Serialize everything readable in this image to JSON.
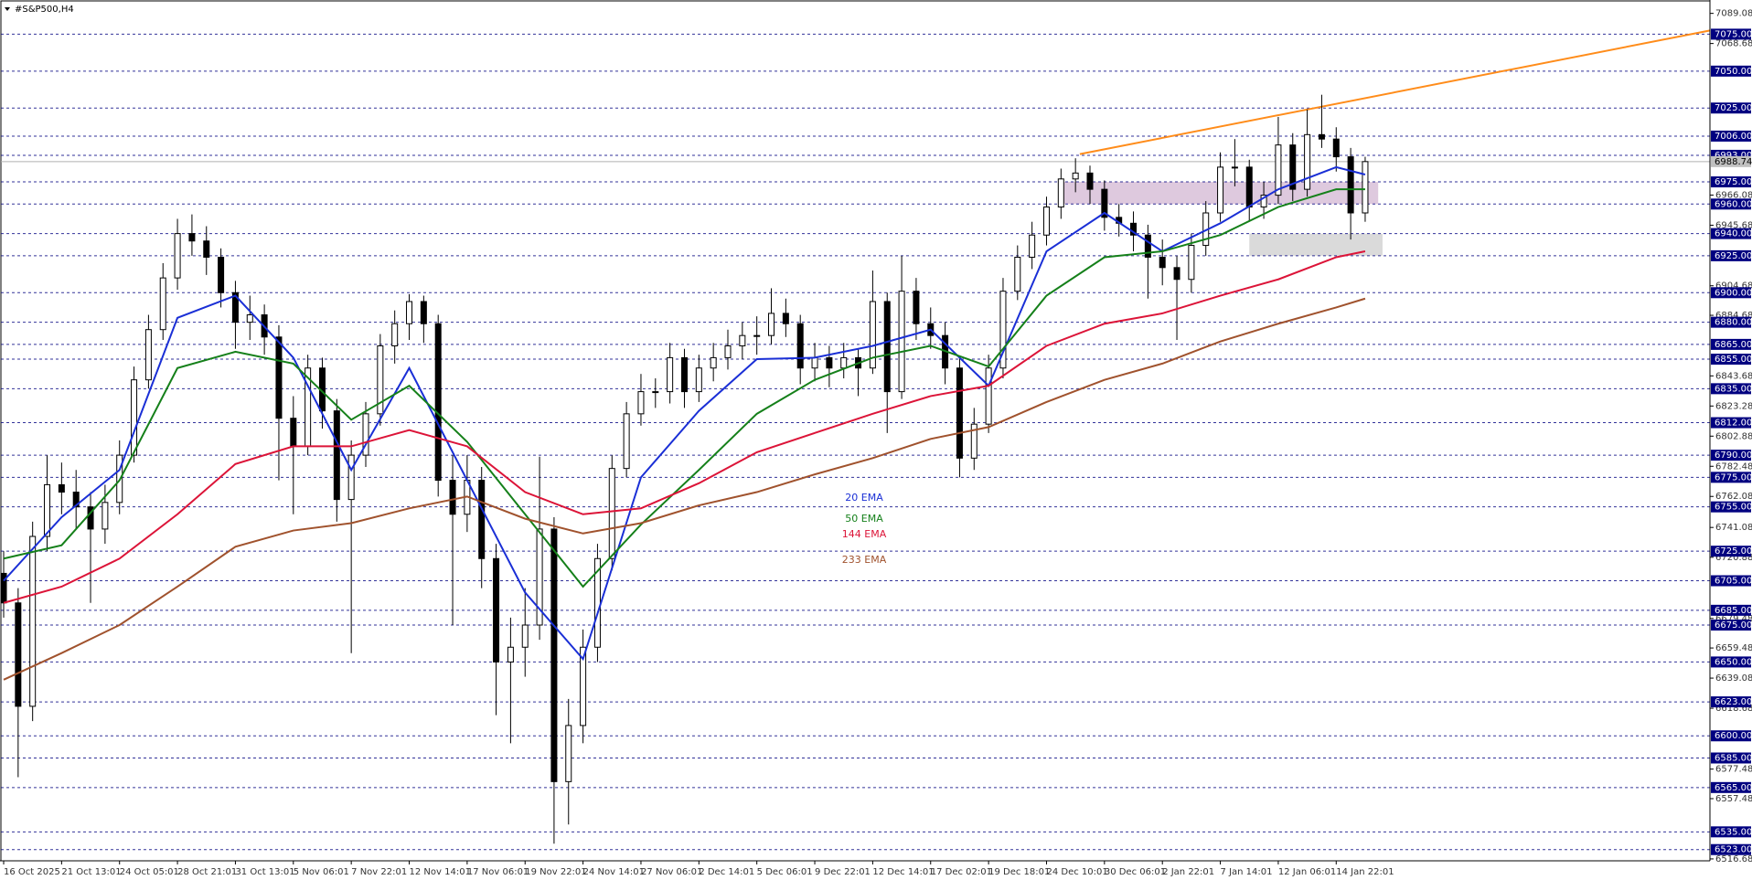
{
  "chart_data": {
    "type": "candlestick",
    "title": "#S&P500,H4",
    "ylim": [
      6515.4,
      7096.9
    ],
    "grid": false,
    "up_color": "#ffffff",
    "down_color": "#000000",
    "wick_color": "#000000",
    "level_color": "#000080",
    "yticks": [
      7089.08,
      7068.68,
      6966.08,
      6945.68,
      6904.68,
      6884.68,
      6843.68,
      6823.28,
      6802.88,
      6782.48,
      6762.08,
      6741.08,
      6720.88,
      6679.48,
      6659.48,
      6639.08,
      6618.68,
      6577.48,
      6557.48,
      6516.68
    ],
    "xticks": [
      {
        "value": 0,
        "label": "16 Oct 2025"
      },
      {
        "value": 4,
        "label": "21 Oct 13:01"
      },
      {
        "value": 8,
        "label": "24 Oct 05:01"
      },
      {
        "value": 12,
        "label": "28 Oct 21:01"
      },
      {
        "value": 16,
        "label": "31 Oct 13:01"
      },
      {
        "value": 20,
        "label": "5 Nov 06:01"
      },
      {
        "value": 24,
        "label": "7 Nov 22:01"
      },
      {
        "value": 28,
        "label": "12 Nov 14:01"
      },
      {
        "value": 32,
        "label": "17 Nov 06:01"
      },
      {
        "value": 36,
        "label": "19 Nov 22:01"
      },
      {
        "value": 40,
        "label": "24 Nov 14:01"
      },
      {
        "value": 44,
        "label": "27 Nov 06:01"
      },
      {
        "value": 48,
        "label": "2 Dec 14:01"
      },
      {
        "value": 52,
        "label": "5 Dec 06:01"
      },
      {
        "value": 56,
        "label": "9 Dec 22:01"
      },
      {
        "value": 60,
        "label": "12 Dec 14:01"
      },
      {
        "value": 64,
        "label": "17 Dec 02:01"
      },
      {
        "value": 68,
        "label": "19 Dec 18:01"
      },
      {
        "value": 72,
        "label": "24 Dec 10:01"
      },
      {
        "value": 76,
        "label": "30 Dec 06:01"
      },
      {
        "value": 80,
        "label": "2 Jan 22:01"
      },
      {
        "value": 84,
        "label": "7 Jan 14:01"
      },
      {
        "value": 88,
        "label": "12 Jan 06:01"
      },
      {
        "value": 92,
        "label": "14 Jan 22:01"
      }
    ],
    "ohlc": [
      [
        6710,
        6725,
        6680,
        6690
      ],
      [
        6690,
        6700,
        6572,
        6620
      ],
      [
        6620,
        6745,
        6610,
        6735
      ],
      [
        6735,
        6790,
        6725,
        6770
      ],
      [
        6770,
        6785,
        6750,
        6765
      ],
      [
        6765,
        6780,
        6740,
        6755
      ],
      [
        6755,
        6765,
        6690,
        6740
      ],
      [
        6740,
        6770,
        6730,
        6758
      ],
      [
        6758,
        6800,
        6750,
        6790
      ],
      [
        6790,
        6850,
        6785,
        6841
      ],
      [
        6841,
        6885,
        6835,
        6875
      ],
      [
        6875,
        6920,
        6868,
        6910
      ],
      [
        6910,
        6950,
        6902,
        6940
      ],
      [
        6940,
        6953,
        6925,
        6935
      ],
      [
        6935,
        6945,
        6912,
        6924
      ],
      [
        6924,
        6930,
        6890,
        6900
      ],
      [
        6900,
        6908,
        6862,
        6880
      ],
      [
        6880,
        6898,
        6868,
        6885
      ],
      [
        6885,
        6892,
        6858,
        6870
      ],
      [
        6870,
        6878,
        6773,
        6815
      ],
      [
        6815,
        6830,
        6750,
        6796
      ],
      [
        6796,
        6858,
        6790,
        6849
      ],
      [
        6849,
        6856,
        6808,
        6820
      ],
      [
        6820,
        6828,
        6745,
        6760
      ],
      [
        6760,
        6800,
        6656,
        6790
      ],
      [
        6790,
        6826,
        6782,
        6818
      ],
      [
        6818,
        6872,
        6810,
        6864
      ],
      [
        6864,
        6888,
        6852,
        6879
      ],
      [
        6879,
        6899,
        6868,
        6894
      ],
      [
        6894,
        6898,
        6866,
        6879
      ],
      [
        6879,
        6885,
        6762,
        6773
      ],
      [
        6773,
        6790,
        6675,
        6750
      ],
      [
        6750,
        6790,
        6738,
        6773
      ],
      [
        6773,
        6782,
        6700,
        6720
      ],
      [
        6720,
        6730,
        6614,
        6650
      ],
      [
        6650,
        6680,
        6595,
        6660
      ],
      [
        6660,
        6700,
        6640,
        6675
      ],
      [
        6675,
        6789,
        6665,
        6740
      ],
      [
        6740,
        6748,
        6527,
        6569
      ],
      [
        6569,
        6625,
        6540,
        6607
      ],
      [
        6607,
        6672,
        6595,
        6660
      ],
      [
        6660,
        6730,
        6650,
        6720
      ],
      [
        6720,
        6790,
        6712,
        6781
      ],
      [
        6781,
        6826,
        6775,
        6818
      ],
      [
        6818,
        6845,
        6810,
        6833
      ],
      [
        6833,
        6842,
        6822,
        6833
      ],
      [
        6833,
        6866,
        6825,
        6856
      ],
      [
        6856,
        6862,
        6822,
        6833
      ],
      [
        6833,
        6858,
        6826,
        6849
      ],
      [
        6849,
        6866,
        6840,
        6856
      ],
      [
        6856,
        6875,
        6848,
        6864
      ],
      [
        6864,
        6880,
        6855,
        6871
      ],
      [
        6871,
        6884,
        6858,
        6871
      ],
      [
        6871,
        6903,
        6865,
        6886
      ],
      [
        6886,
        6896,
        6870,
        6879
      ],
      [
        6879,
        6885,
        6838,
        6849
      ],
      [
        6849,
        6866,
        6840,
        6856
      ],
      [
        6856,
        6864,
        6836,
        6849
      ],
      [
        6849,
        6866,
        6842,
        6856
      ],
      [
        6856,
        6862,
        6830,
        6849
      ],
      [
        6849,
        6915,
        6845,
        6894
      ],
      [
        6894,
        6900,
        6805,
        6833
      ],
      [
        6833,
        6925,
        6828,
        6901
      ],
      [
        6901,
        6910,
        6868,
        6879
      ],
      [
        6879,
        6890,
        6862,
        6871
      ],
      [
        6871,
        6880,
        6838,
        6849
      ],
      [
        6849,
        6856,
        6775,
        6788
      ],
      [
        6788,
        6822,
        6780,
        6811
      ],
      [
        6811,
        6858,
        6805,
        6849
      ],
      [
        6849,
        6910,
        6842,
        6901
      ],
      [
        6901,
        6932,
        6895,
        6924
      ],
      [
        6924,
        6948,
        6916,
        6939
      ],
      [
        6939,
        6965,
        6932,
        6958
      ],
      [
        6958,
        6984,
        6950,
        6977
      ],
      [
        6977,
        6991,
        6968,
        6981
      ],
      [
        6981,
        6986,
        6960,
        6970
      ],
      [
        6970,
        6976,
        6942,
        6951
      ],
      [
        6951,
        6960,
        6938,
        6947
      ],
      [
        6947,
        6955,
        6928,
        6939
      ],
      [
        6939,
        6946,
        6896,
        6924
      ],
      [
        6924,
        6936,
        6905,
        6917
      ],
      [
        6917,
        6925,
        6868,
        6909
      ],
      [
        6909,
        6940,
        6900,
        6932
      ],
      [
        6932,
        6962,
        6925,
        6954
      ],
      [
        6954,
        6995,
        6948,
        6985
      ],
      [
        6985,
        7004,
        6972,
        6985
      ],
      [
        6985,
        6990,
        6948,
        6958
      ],
      [
        6958,
        6975,
        6950,
        6966
      ],
      [
        6966,
        7019,
        6960,
        7000
      ],
      [
        7000,
        7008,
        6962,
        6970
      ],
      [
        6970,
        7024,
        6965,
        7007
      ],
      [
        7007,
        7034,
        6998,
        7004
      ],
      [
        7004,
        7012,
        6982,
        6992
      ],
      [
        6992,
        6998,
        6936,
        6954
      ],
      [
        6954,
        6992,
        6948,
        6988.74
      ]
    ],
    "series_x": [
      0,
      4,
      8,
      12,
      16,
      20,
      24,
      28,
      32,
      36,
      40,
      44,
      48,
      52,
      56,
      60,
      64,
      68,
      72,
      76,
      80,
      84,
      88,
      92,
      94
    ],
    "series": [
      {
        "name": "20 EMA",
        "color": "#1a2fd6",
        "values": [
          6705,
          6748,
          6780,
          6883,
          6898,
          6856,
          6780,
          6849,
          6773,
          6697,
          6652,
          6775,
          6820,
          6855,
          6856,
          6864,
          6875,
          6837,
          6928,
          6954,
          6928,
          6947,
          6970,
          6985,
          6980
        ]
      },
      {
        "name": "50 EMA",
        "color": "#15801a",
        "values": [
          6720,
          6729,
          6773,
          6849,
          6860,
          6852,
          6814,
          6837,
          6799,
          6750,
          6701,
          6743,
          6780,
          6818,
          6841,
          6856,
          6864,
          6850,
          6898,
          6924,
          6928,
          6939,
          6958,
          6970,
          6970
        ]
      },
      {
        "name": "144 EMA",
        "color": "#dc1438",
        "values": [
          6690,
          6701,
          6720,
          6750,
          6784,
          6796,
          6796,
          6807,
          6796,
          6765,
          6750,
          6754,
          6771,
          6792,
          6805,
          6818,
          6830,
          6837,
          6864,
          6879,
          6886,
          6898,
          6909,
          6924,
          6928
        ]
      },
      {
        "name": "233 EMA",
        "color": "#a0522d",
        "values": [
          6638,
          6656,
          6675,
          6701,
          6728,
          6739,
          6744,
          6754,
          6762,
          6747,
          6737,
          6744,
          6756,
          6765,
          6777,
          6788,
          6801,
          6809,
          6826,
          6841,
          6852,
          6867,
          6879,
          6890,
          6896
        ]
      }
    ],
    "trendline": {
      "color": "#ff8c1a",
      "x": [
        74.3,
        117.9
      ],
      "values": [
        6993.8,
        7077.7
      ]
    },
    "zones": [
      {
        "color": "#d8bfd8",
        "x": [
          73.1,
          94.9
        ],
        "values": [
          6960,
          6975
        ]
      },
      {
        "color": "#d3d3d3",
        "x": [
          86,
          95.2
        ],
        "values": [
          6925,
          6940
        ]
      }
    ],
    "current_price": 6988.74,
    "levels": [
      {
        "value": 7075,
        "label": "7075.00"
      },
      {
        "value": 7050,
        "label": "7050.00"
      },
      {
        "value": 7025,
        "label": "7025.00"
      },
      {
        "value": 7006,
        "label": "7006.00"
      },
      {
        "value": 6993,
        "label": "6993.00"
      },
      {
        "value": 6975,
        "label": "6975.00"
      },
      {
        "value": 6960,
        "label": "6960.00"
      },
      {
        "value": 6940,
        "label": "6940.00"
      },
      {
        "value": 6925,
        "label": "6925.00"
      },
      {
        "value": 6900,
        "label": "6900.00"
      },
      {
        "value": 6880,
        "label": "6880.00"
      },
      {
        "value": 6865,
        "label": "6865.00"
      },
      {
        "value": 6855,
        "label": "6855.00"
      },
      {
        "value": 6835,
        "label": "6835.00"
      },
      {
        "value": 6812,
        "label": "6812.00"
      },
      {
        "value": 6790,
        "label": "6790.00"
      },
      {
        "value": 6775,
        "label": "6775.00"
      },
      {
        "value": 6755,
        "label": "6755.00"
      },
      {
        "value": 6725,
        "label": "6725.00"
      },
      {
        "value": 6705,
        "label": "6705.00"
      },
      {
        "value": 6685,
        "label": "6685.00"
      },
      {
        "value": 6675,
        "label": "6675.00"
      },
      {
        "value": 6650,
        "label": "6650.00"
      },
      {
        "value": 6623,
        "label": "6623.00"
      },
      {
        "value": 6600,
        "label": "6600.00"
      },
      {
        "value": 6585,
        "label": "6585.00"
      },
      {
        "value": 6565,
        "label": "6565.00"
      },
      {
        "value": 6535,
        "label": "6535.00"
      },
      {
        "value": 6523,
        "label": "6523.00"
      }
    ]
  }
}
